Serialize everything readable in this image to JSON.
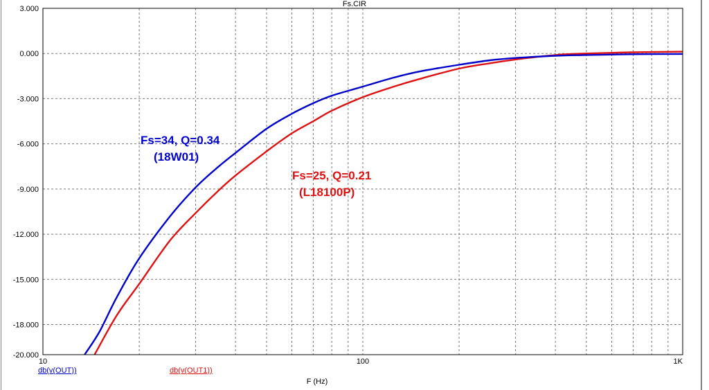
{
  "chart_data": {
    "type": "line",
    "title": "Fs.CIR",
    "xlabel": "F (Hz)",
    "ylabel": "",
    "x_scale": "log",
    "xlim": [
      10,
      1000
    ],
    "ylim": [
      -20,
      3
    ],
    "grid": true,
    "x_tick_labels": [
      {
        "value": 10,
        "label": "10"
      },
      {
        "value": 100,
        "label": "100"
      },
      {
        "value": 1000,
        "label": "1K"
      }
    ],
    "y_ticks": [
      {
        "value": 3,
        "label": "3.000"
      },
      {
        "value": 0,
        "label": "0.000"
      },
      {
        "value": -3,
        "label": "-3.000"
      },
      {
        "value": -6,
        "label": "-6.000"
      },
      {
        "value": -9,
        "label": "-9.000"
      },
      {
        "value": -12,
        "label": "-12.000"
      },
      {
        "value": -15,
        "label": "-15.000"
      },
      {
        "value": -18,
        "label": "-18.000"
      },
      {
        "value": -20,
        "label": "-20.000"
      }
    ],
    "series": [
      {
        "name": "db(v(OUT))",
        "color": "#0000cc",
        "x": [
          13.5,
          15,
          17,
          20,
          25,
          30,
          35,
          40,
          50,
          60,
          70,
          80,
          100,
          125,
          150,
          200,
          250,
          300,
          400,
          500,
          700,
          1000
        ],
        "y": [
          -20.0,
          -18.5,
          -16.2,
          -13.6,
          -10.8,
          -8.9,
          -7.6,
          -6.6,
          -5.0,
          -4.0,
          -3.3,
          -2.8,
          -2.2,
          -1.6,
          -1.2,
          -0.75,
          -0.45,
          -0.3,
          -0.15,
          -0.1,
          -0.05,
          -0.03
        ]
      },
      {
        "name": "db(v(OUT1))",
        "color": "#dd1111",
        "x": [
          14.5,
          17,
          20,
          25,
          30,
          35,
          40,
          50,
          60,
          70,
          80,
          100,
          125,
          150,
          200,
          250,
          300,
          400,
          500,
          700,
          1000
        ],
        "y": [
          -20.0,
          -17.4,
          -15.3,
          -12.4,
          -10.6,
          -9.2,
          -8.1,
          -6.5,
          -5.3,
          -4.5,
          -3.8,
          -2.9,
          -2.2,
          -1.7,
          -1.0,
          -0.65,
          -0.4,
          -0.1,
          0.0,
          0.08,
          0.12
        ]
      }
    ],
    "annotations": [
      {
        "text": "Fs=34, Q=0.34",
        "color": "#0000cc"
      },
      {
        "text": "(18W01)",
        "color": "#0000cc"
      },
      {
        "text": "Fs=25, Q=0.21",
        "color": "#dd1111"
      },
      {
        "text": "(L18100P)",
        "color": "#dd1111"
      }
    ]
  }
}
